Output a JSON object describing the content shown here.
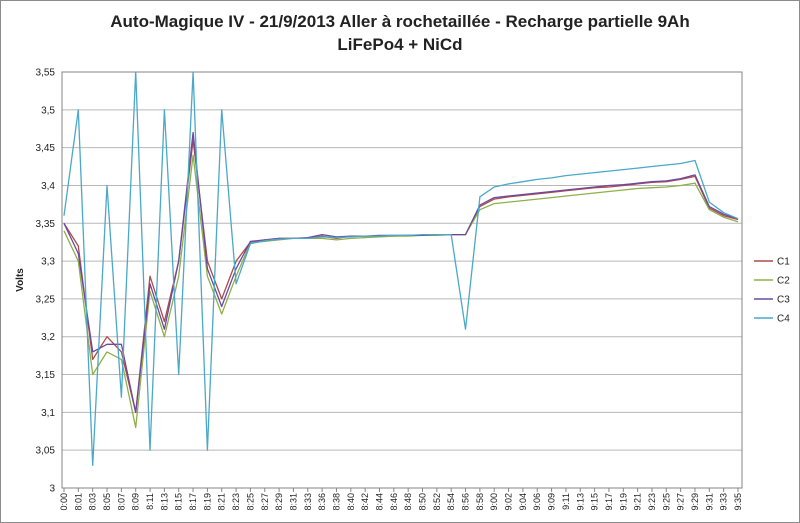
{
  "chart_data": {
    "type": "line",
    "title_line1": "Auto-Magique IV - 21/9/2013 Aller à rochetaillée - Recharge partielle 9Ah",
    "title_line2": "LiFePo4 + NiCd",
    "ylabel": "Volts",
    "xlabel": "",
    "ylim": [
      3,
      3.55
    ],
    "yticks": [
      "3",
      "3,05",
      "3,1",
      "3,15",
      "3,2",
      "3,25",
      "3,3",
      "3,35",
      "3,4",
      "3,45",
      "3,5",
      "3,55"
    ],
    "ytick_values": [
      3,
      3.05,
      3.1,
      3.15,
      3.2,
      3.25,
      3.3,
      3.35,
      3.4,
      3.45,
      3.5,
      3.55
    ],
    "grid": true,
    "legend_position": "right",
    "x_categories": [
      "0:00",
      "8:01",
      "8:03",
      "8:05",
      "8:07",
      "8:09",
      "8:11",
      "8:13",
      "8:15",
      "8:17",
      "8:19",
      "8:21",
      "8:23",
      "8:25",
      "8:27",
      "8:29",
      "8:31",
      "8:33",
      "8:36",
      "8:38",
      "8:40",
      "8:42",
      "8:44",
      "8:46",
      "8:48",
      "8:50",
      "8:52",
      "8:54",
      "8:56",
      "8:58",
      "9:00",
      "9:02",
      "9:04",
      "9:06",
      "9:09",
      "9:11",
      "9:13",
      "9:15",
      "9:17",
      "9:19",
      "9:21",
      "9:23",
      "9:25",
      "9:27",
      "9:29",
      "9:31",
      "9:33",
      "9:35"
    ],
    "series": [
      {
        "name": "C1",
        "color": "#b04a4a",
        "values": [
          3.35,
          3.32,
          3.17,
          3.2,
          3.18,
          3.1,
          3.28,
          3.22,
          3.3,
          3.46,
          3.3,
          3.25,
          3.3,
          3.325,
          3.328,
          3.33,
          3.33,
          3.33,
          3.333,
          3.33,
          3.333,
          3.333,
          3.333,
          3.333,
          3.334,
          3.334,
          3.335,
          3.335,
          3.335,
          3.372,
          3.382,
          3.385,
          3.387,
          3.389,
          3.391,
          3.393,
          3.395,
          3.397,
          3.398,
          3.4,
          3.402,
          3.404,
          3.405,
          3.408,
          3.412,
          3.37,
          3.36,
          3.355
        ]
      },
      {
        "name": "C2",
        "color": "#8db04a",
        "values": [
          3.34,
          3.3,
          3.15,
          3.18,
          3.17,
          3.08,
          3.26,
          3.2,
          3.28,
          3.44,
          3.28,
          3.23,
          3.28,
          3.324,
          3.326,
          3.328,
          3.33,
          3.33,
          3.33,
          3.328,
          3.33,
          3.331,
          3.332,
          3.333,
          3.333,
          3.334,
          3.334,
          3.335,
          3.335,
          3.368,
          3.376,
          3.378,
          3.38,
          3.382,
          3.384,
          3.386,
          3.388,
          3.39,
          3.392,
          3.394,
          3.396,
          3.397,
          3.398,
          3.4,
          3.403,
          3.368,
          3.358,
          3.352
        ]
      },
      {
        "name": "C3",
        "color": "#6a4aa0",
        "values": [
          3.35,
          3.31,
          3.18,
          3.19,
          3.19,
          3.1,
          3.27,
          3.21,
          3.3,
          3.47,
          3.29,
          3.24,
          3.29,
          3.326,
          3.328,
          3.33,
          3.33,
          3.331,
          3.335,
          3.332,
          3.333,
          3.333,
          3.334,
          3.334,
          3.334,
          3.334,
          3.335,
          3.335,
          3.335,
          3.374,
          3.384,
          3.386,
          3.388,
          3.39,
          3.392,
          3.394,
          3.396,
          3.398,
          3.4,
          3.401,
          3.403,
          3.405,
          3.406,
          3.409,
          3.414,
          3.372,
          3.362,
          3.356
        ]
      },
      {
        "name": "C4",
        "color": "#4aa8c8",
        "values": [
          3.36,
          3.5,
          3.03,
          3.4,
          3.12,
          3.55,
          3.05,
          3.5,
          3.15,
          3.55,
          3.05,
          3.5,
          3.27,
          3.323,
          3.327,
          3.329,
          3.33,
          3.33,
          3.332,
          3.331,
          3.332,
          3.333,
          3.333,
          3.334,
          3.334,
          3.335,
          3.335,
          3.335,
          3.21,
          3.385,
          3.398,
          3.402,
          3.405,
          3.408,
          3.41,
          3.413,
          3.415,
          3.417,
          3.419,
          3.421,
          3.423,
          3.425,
          3.427,
          3.429,
          3.433,
          3.378,
          3.364,
          3.356
        ]
      }
    ]
  }
}
